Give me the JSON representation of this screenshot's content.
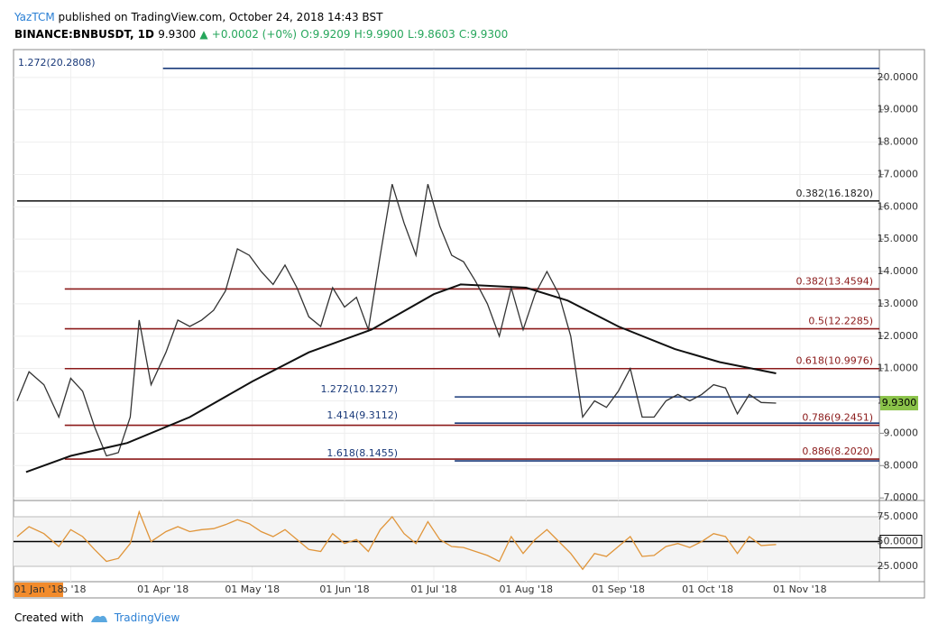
{
  "header": {
    "author": "YazTCM",
    "published": "published on TradingView.com, October 24, 2018 14:43 BST",
    "symbol": "BINANCE:BNBUSDT, 1D",
    "last": "9.9300",
    "change": "+0.0002 (+0%)",
    "open": "O:9.9209",
    "high": "H:9.9900",
    "low": "L:9.8603",
    "close": "C:9.9300"
  },
  "footer": {
    "created": "Created with",
    "brand": "TradingView"
  },
  "chart_data": [
    {
      "type": "line",
      "pane": "price",
      "xlim": [
        "2018-02-11",
        "2018-11-28"
      ],
      "ylim": [
        6.92,
        20.86
      ],
      "yticks": [
        {
          "value": 7,
          "label": "7.0000"
        },
        {
          "value": 8,
          "label": "8.0000"
        },
        {
          "value": 9,
          "label": "9.0000"
        },
        {
          "value": 10,
          "label": "10.0000"
        },
        {
          "value": 11,
          "label": "11.0000"
        },
        {
          "value": 12,
          "label": "12.0000"
        },
        {
          "value": 13,
          "label": "13.0000"
        },
        {
          "value": 14,
          "label": "14.0000"
        },
        {
          "value": 15,
          "label": "15.0000"
        },
        {
          "value": 16,
          "label": "16.0000"
        },
        {
          "value": 17,
          "label": "17.0000"
        },
        {
          "value": 18,
          "label": "18.0000"
        },
        {
          "value": 19,
          "label": "19.0000"
        },
        {
          "value": 20,
          "label": "20.0000"
        }
      ],
      "xticks": [
        {
          "value": "2018-03-01",
          "label": "eb '18"
        },
        {
          "value": "2018-04-01",
          "label": "01 Apr '18"
        },
        {
          "value": "2018-05-01",
          "label": "01 May '18"
        },
        {
          "value": "2018-06-01",
          "label": "01 Jun '18"
        },
        {
          "value": "2018-07-01",
          "label": "01 Jul '18"
        },
        {
          "value": "2018-08-01",
          "label": "01 Aug '18"
        },
        {
          "value": "2018-09-01",
          "label": "01 Sep '18"
        },
        {
          "value": "2018-10-01",
          "label": "01 Oct '18"
        },
        {
          "value": "2018-11-01",
          "label": "01 Nov '18"
        }
      ],
      "crosshair_label": "01 Jan '18",
      "grid": true,
      "last_price": {
        "value": 9.93,
        "label": "9.9300",
        "color": "#8bc34a"
      },
      "series": [
        {
          "name": "BNBUSDT",
          "color": "#333333",
          "x": [
            "2018-02-11",
            "2018-02-15",
            "2018-02-20",
            "2018-02-25",
            "2018-03-01",
            "2018-03-05",
            "2018-03-09",
            "2018-03-13",
            "2018-03-17",
            "2018-03-21",
            "2018-03-24",
            "2018-03-28",
            "2018-04-02",
            "2018-04-06",
            "2018-04-10",
            "2018-04-14",
            "2018-04-18",
            "2018-04-22",
            "2018-04-26",
            "2018-04-30",
            "2018-05-04",
            "2018-05-08",
            "2018-05-12",
            "2018-05-16",
            "2018-05-20",
            "2018-05-24",
            "2018-05-28",
            "2018-06-01",
            "2018-06-05",
            "2018-06-09",
            "2018-06-13",
            "2018-06-17",
            "2018-06-21",
            "2018-06-25",
            "2018-06-29",
            "2018-07-03",
            "2018-07-07",
            "2018-07-11",
            "2018-07-15",
            "2018-07-19",
            "2018-07-23",
            "2018-07-27",
            "2018-07-31",
            "2018-08-04",
            "2018-08-08",
            "2018-08-12",
            "2018-08-16",
            "2018-08-20",
            "2018-08-24",
            "2018-08-28",
            "2018-09-01",
            "2018-09-05",
            "2018-09-09",
            "2018-09-13",
            "2018-09-17",
            "2018-09-21",
            "2018-09-25",
            "2018-09-29",
            "2018-10-03",
            "2018-10-07",
            "2018-10-11",
            "2018-10-15",
            "2018-10-19",
            "2018-10-24"
          ],
          "values": [
            10.0,
            10.9,
            10.5,
            9.5,
            10.7,
            10.3,
            9.2,
            8.3,
            8.4,
            9.5,
            12.5,
            10.5,
            11.5,
            12.5,
            12.3,
            12.5,
            12.8,
            13.4,
            14.7,
            14.5,
            14.0,
            13.6,
            14.2,
            13.5,
            12.6,
            12.3,
            13.5,
            12.9,
            13.2,
            12.2,
            14.5,
            16.7,
            15.5,
            14.5,
            16.7,
            15.4,
            14.5,
            14.3,
            13.7,
            13.0,
            12.0,
            13.5,
            12.2,
            13.3,
            14.0,
            13.3,
            12.0,
            9.5,
            10.0,
            9.8,
            10.3,
            11.0,
            9.5,
            9.5,
            10.0,
            10.2,
            10.0,
            10.2,
            10.5,
            10.4,
            9.6,
            10.2,
            9.95,
            9.93
          ]
        },
        {
          "name": "MA",
          "color": "#111111",
          "x": [
            "2018-02-14",
            "2018-03-01",
            "2018-03-20",
            "2018-04-10",
            "2018-05-01",
            "2018-05-20",
            "2018-06-10",
            "2018-07-01",
            "2018-07-10",
            "2018-08-01",
            "2018-08-15",
            "2018-09-01",
            "2018-09-20",
            "2018-10-05",
            "2018-10-24"
          ],
          "values": [
            7.8,
            8.3,
            8.7,
            9.5,
            10.6,
            11.5,
            12.2,
            13.3,
            13.6,
            13.5,
            13.1,
            12.3,
            11.6,
            11.2,
            10.85
          ]
        }
      ],
      "levels": [
        {
          "label": "1.272(20.2808)",
          "value": 20.2808,
          "color": "#1a3a7a",
          "start": "2018-04-01",
          "side": "left"
        },
        {
          "label": "0.382(16.1820)",
          "value": 16.182,
          "color": "#222222",
          "start": "2018-02-11",
          "side": "right"
        },
        {
          "label": "0.382(13.4594)",
          "value": 13.4594,
          "color": "#8b1a1a",
          "start": "2018-02-27",
          "side": "right"
        },
        {
          "label": "0.5(12.2285)",
          "value": 12.2285,
          "color": "#8b1a1a",
          "start": "2018-02-27",
          "side": "right"
        },
        {
          "label": "0.618(10.9976)",
          "value": 10.9976,
          "color": "#8b1a1a",
          "start": "2018-02-27",
          "side": "right"
        },
        {
          "label": "1.272(10.1227)",
          "value": 10.1227,
          "color": "#1a3a7a",
          "start": "2018-07-08",
          "side": "left"
        },
        {
          "label": "1.414(9.3112)",
          "value": 9.3112,
          "color": "#1a3a7a",
          "start": "2018-07-08",
          "side": "left"
        },
        {
          "label": "0.786(9.2451)",
          "value": 9.2451,
          "color": "#8b1a1a",
          "start": "2018-02-27",
          "side": "right"
        },
        {
          "label": "1.618(8.1455)",
          "value": 8.1455,
          "color": "#1a3a7a",
          "start": "2018-07-08",
          "side": "left"
        },
        {
          "label": "0.886(8.2020)",
          "value": 8.202,
          "color": "#8b1a1a",
          "start": "2018-02-27",
          "side": "right"
        }
      ]
    },
    {
      "type": "line",
      "pane": "rsi",
      "xlim": [
        "2018-02-11",
        "2018-11-28"
      ],
      "ylim": [
        16.8,
        80.5
      ],
      "yticks": [
        {
          "value": 25,
          "label": "25.0000"
        },
        {
          "value": 50,
          "label": "50.0000"
        },
        {
          "value": 75,
          "label": "75.0000"
        }
      ],
      "series": [
        {
          "name": "RSI",
          "color": "#e0953a",
          "x": [
            "2018-02-11",
            "2018-02-15",
            "2018-02-20",
            "2018-02-25",
            "2018-03-01",
            "2018-03-05",
            "2018-03-09",
            "2018-03-13",
            "2018-03-17",
            "2018-03-21",
            "2018-03-24",
            "2018-03-28",
            "2018-04-02",
            "2018-04-06",
            "2018-04-10",
            "2018-04-14",
            "2018-04-18",
            "2018-04-22",
            "2018-04-26",
            "2018-04-30",
            "2018-05-04",
            "2018-05-08",
            "2018-05-12",
            "2018-05-16",
            "2018-05-20",
            "2018-05-24",
            "2018-05-28",
            "2018-06-01",
            "2018-06-05",
            "2018-06-09",
            "2018-06-13",
            "2018-06-17",
            "2018-06-21",
            "2018-06-25",
            "2018-06-29",
            "2018-07-03",
            "2018-07-07",
            "2018-07-11",
            "2018-07-15",
            "2018-07-19",
            "2018-07-23",
            "2018-07-27",
            "2018-07-31",
            "2018-08-04",
            "2018-08-08",
            "2018-08-12",
            "2018-08-16",
            "2018-08-20",
            "2018-08-24",
            "2018-08-28",
            "2018-09-01",
            "2018-09-05",
            "2018-09-09",
            "2018-09-13",
            "2018-09-17",
            "2018-09-21",
            "2018-09-25",
            "2018-09-29",
            "2018-10-03",
            "2018-10-07",
            "2018-10-11",
            "2018-10-15",
            "2018-10-19",
            "2018-10-24"
          ],
          "values": [
            55,
            65,
            58,
            45,
            62,
            55,
            42,
            30,
            33,
            48,
            80,
            50,
            60,
            65,
            60,
            62,
            63,
            67,
            72,
            68,
            60,
            55,
            62,
            52,
            42,
            40,
            58,
            48,
            52,
            40,
            62,
            75,
            58,
            48,
            70,
            52,
            45,
            44,
            40,
            36,
            30,
            55,
            38,
            52,
            62,
            50,
            38,
            22,
            38,
            35,
            45,
            55,
            35,
            36,
            45,
            48,
            44,
            50,
            58,
            55,
            38,
            55,
            46,
            47
          ]
        }
      ]
    }
  ]
}
